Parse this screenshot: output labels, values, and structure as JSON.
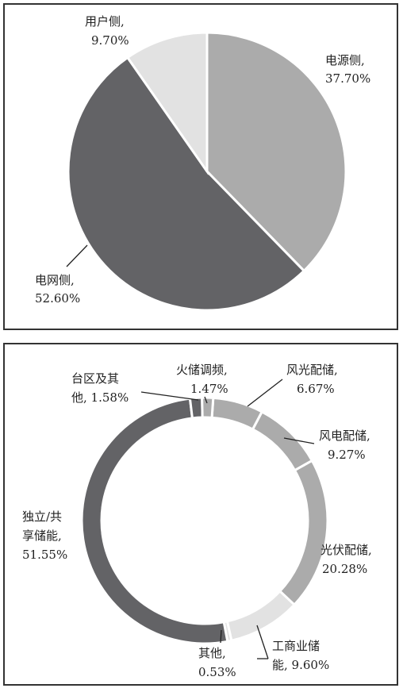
{
  "chart_data": [
    {
      "type": "pie",
      "title": "",
      "slices": [
        {
          "label": "电源侧,",
          "value_text": "37.70%",
          "value": 37.7,
          "color": "#ababab"
        },
        {
          "label": "电网侧,",
          "value_text": "52.60%",
          "value": 52.6,
          "color": "#636366"
        },
        {
          "label": "用户侧,",
          "value_text": "9.70%",
          "value": 9.7,
          "color": "#e2e2e2"
        }
      ]
    },
    {
      "type": "pie",
      "subtype": "donut",
      "title": "",
      "slices": [
        {
          "label": "风光配储,",
          "value_text": "6.67%",
          "value": 6.67,
          "color": "#ababab"
        },
        {
          "label": "风电配储,",
          "value_text": "9.27%",
          "value": 9.27,
          "color": "#ababab"
        },
        {
          "label": "光伏配储,",
          "value_text": "20.28%",
          "value": 20.28,
          "color": "#ababab"
        },
        {
          "label": "工商业储能,",
          "value_text": "9.60%",
          "value": 9.6,
          "color": "#e2e2e2"
        },
        {
          "label": "其他,",
          "value_text": "0.53%",
          "value": 0.53,
          "color": "#e2e2e2"
        },
        {
          "label": "独立/共享储能,",
          "value_text": "51.55%",
          "value": 51.55,
          "color": "#636366"
        },
        {
          "label": "台区及其他,",
          "value_text": "1.58%",
          "value": 1.58,
          "color": "#636366"
        },
        {
          "label": "火储调频,",
          "value_text": "1.47%",
          "value": 1.47,
          "color": "#ababab"
        }
      ]
    }
  ]
}
